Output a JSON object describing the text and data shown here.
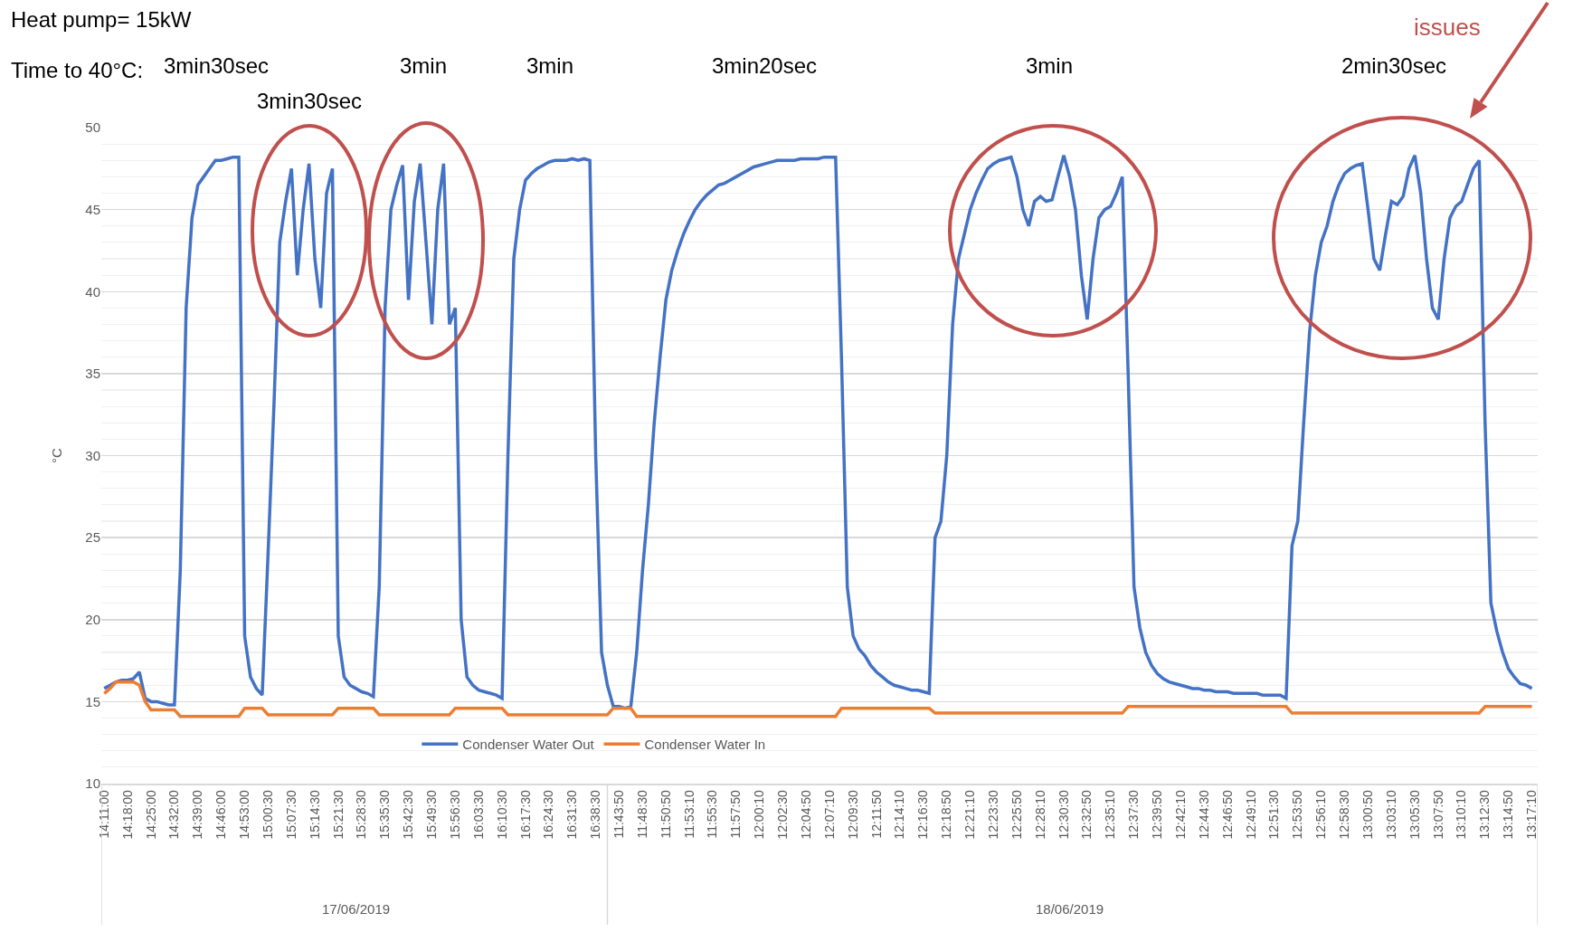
{
  "chart_data": {
    "type": "line",
    "categories": [
      "14:11:00",
      null,
      null,
      null,
      "14:18:00",
      null,
      null,
      null,
      "14:25:00",
      null,
      null,
      null,
      "14:32:00",
      null,
      null,
      null,
      "14:39:00",
      null,
      null,
      null,
      "14:46:00",
      null,
      null,
      null,
      "14:53:00",
      null,
      null,
      null,
      "15:00:30",
      null,
      null,
      null,
      "15:07:30",
      null,
      null,
      null,
      "15:14:30",
      null,
      null,
      null,
      "15:21:30",
      null,
      null,
      null,
      "15:28:30",
      null,
      null,
      null,
      "15:35:30",
      null,
      null,
      null,
      "15:42:30",
      null,
      null,
      null,
      "15:49:30",
      null,
      null,
      null,
      "15:56:30",
      null,
      null,
      null,
      "16:03:30",
      null,
      null,
      null,
      "16:10:30",
      null,
      null,
      null,
      "16:17:30",
      null,
      null,
      null,
      "16:24:30",
      null,
      null,
      null,
      "16:31:30",
      null,
      null,
      null,
      "16:38:30",
      null,
      null,
      null,
      "11:43:50",
      null,
      null,
      null,
      "11:48:30",
      null,
      null,
      null,
      "11:50:50",
      null,
      null,
      null,
      "11:53:10",
      null,
      null,
      null,
      "11:55:30",
      null,
      null,
      null,
      "11:57:50",
      null,
      null,
      null,
      "12:00:10",
      null,
      null,
      null,
      "12:02:30",
      null,
      null,
      null,
      "12:04:50",
      null,
      null,
      null,
      "12:07:10",
      null,
      null,
      null,
      "12:09:30",
      null,
      null,
      null,
      "12:11:50",
      null,
      null,
      null,
      "12:14:10",
      null,
      null,
      null,
      "12:16:30",
      null,
      null,
      null,
      "12:18:50",
      null,
      null,
      null,
      "12:21:10",
      null,
      null,
      null,
      "12:23:30",
      null,
      null,
      null,
      "12:25:50",
      null,
      null,
      null,
      "12:28:10",
      null,
      null,
      null,
      "12:30:30",
      null,
      null,
      null,
      "12:32:50",
      null,
      null,
      null,
      "12:35:10",
      null,
      null,
      null,
      "12:37:30",
      null,
      null,
      null,
      "12:39:50",
      null,
      null,
      null,
      "12:42:10",
      null,
      null,
      null,
      "12:44:30",
      null,
      null,
      null,
      "12:46:50",
      null,
      null,
      null,
      "12:49:10",
      null,
      null,
      null,
      "12:51:30",
      null,
      null,
      null,
      "12:53:50",
      null,
      null,
      null,
      "12:56:10",
      null,
      null,
      null,
      "12:58:30",
      null,
      null,
      null,
      "13:00:50",
      null,
      null,
      null,
      "13:03:10",
      null,
      null,
      null,
      "13:05:30",
      null,
      null,
      null,
      "13:07:50",
      null,
      null,
      null,
      "13:10:10",
      null,
      null,
      null,
      "13:12:30",
      null,
      null,
      null,
      "13:14:50",
      null,
      null,
      null,
      "13:17:10"
    ],
    "series": [
      {
        "name": "Condenser Water Out",
        "color": "#4472c4",
        "values": [
          15.8,
          16.0,
          16.2,
          16.3,
          16.3,
          16.4,
          16.8,
          15.2,
          15.0,
          15.0,
          14.9,
          14.8,
          14.8,
          23,
          39,
          44.5,
          46.5,
          47,
          47.5,
          48,
          48,
          48.1,
          48.2,
          48.2,
          19,
          16.5,
          15.8,
          15.4,
          24,
          33,
          43,
          45.5,
          47.5,
          41,
          45,
          47.8,
          42,
          39,
          46,
          47.5,
          19,
          16.5,
          16,
          15.8,
          15.6,
          15.5,
          15.3,
          22,
          39,
          45,
          46.5,
          47.7,
          39.5,
          45.5,
          47.8,
          43,
          38,
          45,
          47.8,
          38,
          39,
          20,
          16.5,
          16,
          15.7,
          15.6,
          15.5,
          15.4,
          15.2,
          30,
          42,
          45,
          46.8,
          47.2,
          47.5,
          47.7,
          47.9,
          48,
          48,
          48,
          48.1,
          48,
          48.1,
          48,
          30,
          18,
          16,
          14.7,
          14.7,
          14.6,
          14.7,
          18,
          23,
          27,
          32,
          36,
          39.5,
          41.3,
          42.5,
          43.5,
          44.3,
          45,
          45.5,
          45.9,
          46.2,
          46.5,
          46.6,
          46.8,
          47,
          47.2,
          47.4,
          47.6,
          47.7,
          47.8,
          47.9,
          48,
          48,
          48,
          48,
          48.1,
          48.1,
          48.1,
          48.1,
          48.2,
          48.2,
          48.2,
          36,
          22,
          19,
          18.2,
          17.8,
          17.2,
          16.8,
          16.5,
          16.2,
          16,
          15.9,
          15.8,
          15.7,
          15.7,
          15.6,
          15.5,
          25,
          26,
          30,
          38,
          42,
          43.5,
          45,
          46,
          46.8,
          47.5,
          47.8,
          48,
          48.1,
          48.2,
          47,
          45,
          44,
          45.5,
          45.8,
          45.5,
          45.6,
          47,
          48.3,
          47,
          45,
          41,
          38.3,
          42,
          44.5,
          45,
          45.2,
          46,
          47,
          35,
          22,
          19.5,
          18,
          17.2,
          16.7,
          16.4,
          16.2,
          16.1,
          16,
          15.9,
          15.8,
          15.8,
          15.7,
          15.7,
          15.6,
          15.6,
          15.6,
          15.5,
          15.5,
          15.5,
          15.5,
          15.5,
          15.4,
          15.4,
          15.4,
          15.4,
          15.2,
          24.5,
          26,
          32,
          37.5,
          41,
          43,
          44,
          45.5,
          46.5,
          47.2,
          47.5,
          47.7,
          47.8,
          45,
          42,
          41.3,
          43.5,
          45.5,
          45.3,
          45.8,
          47.5,
          48.3,
          46,
          42,
          39,
          38.3,
          42,
          44.5,
          45.2,
          45.5,
          46.5,
          47.5,
          48,
          32,
          21,
          19.3,
          18,
          17,
          16.5,
          16.1,
          16,
          15.8
        ]
      },
      {
        "name": "Condenser Water In",
        "color": "#ed7d31",
        "values": [
          15.5,
          15.8,
          16.2,
          16.2,
          16.2,
          16.2,
          16.0,
          15.0,
          14.5,
          14.5,
          14.5,
          14.5,
          14.5,
          14.1,
          14.1,
          14.1,
          14.1,
          14.1,
          14.1,
          14.1,
          14.1,
          14.1,
          14.1,
          14.1,
          14.6,
          14.6,
          14.6,
          14.6,
          14.2,
          14.2,
          14.2,
          14.2,
          14.2,
          14.2,
          14.2,
          14.2,
          14.2,
          14.2,
          14.2,
          14.2,
          14.6,
          14.6,
          14.6,
          14.6,
          14.6,
          14.6,
          14.6,
          14.2,
          14.2,
          14.2,
          14.2,
          14.2,
          14.2,
          14.2,
          14.2,
          14.2,
          14.2,
          14.2,
          14.2,
          14.2,
          14.6,
          14.6,
          14.6,
          14.6,
          14.6,
          14.6,
          14.6,
          14.6,
          14.6,
          14.2,
          14.2,
          14.2,
          14.2,
          14.2,
          14.2,
          14.2,
          14.2,
          14.2,
          14.2,
          14.2,
          14.2,
          14.2,
          14.2,
          14.2,
          14.2,
          14.2,
          14.2,
          14.6,
          14.6,
          14.6,
          14.6,
          14.1,
          14.1,
          14.1,
          14.1,
          14.1,
          14.1,
          14.1,
          14.1,
          14.1,
          14.1,
          14.1,
          14.1,
          14.1,
          14.1,
          14.1,
          14.1,
          14.1,
          14.1,
          14.1,
          14.1,
          14.1,
          14.1,
          14.1,
          14.1,
          14.1,
          14.1,
          14.1,
          14.1,
          14.1,
          14.1,
          14.1,
          14.1,
          14.1,
          14.1,
          14.1,
          14.6,
          14.6,
          14.6,
          14.6,
          14.6,
          14.6,
          14.6,
          14.6,
          14.6,
          14.6,
          14.6,
          14.6,
          14.6,
          14.6,
          14.6,
          14.6,
          14.3,
          14.3,
          14.3,
          14.3,
          14.3,
          14.3,
          14.3,
          14.3,
          14.3,
          14.3,
          14.3,
          14.3,
          14.3,
          14.3,
          14.3,
          14.3,
          14.3,
          14.3,
          14.3,
          14.3,
          14.3,
          14.3,
          14.3,
          14.3,
          14.3,
          14.3,
          14.3,
          14.3,
          14.3,
          14.3,
          14.3,
          14.3,
          14.3,
          14.7,
          14.7,
          14.7,
          14.7,
          14.7,
          14.7,
          14.7,
          14.7,
          14.7,
          14.7,
          14.7,
          14.7,
          14.7,
          14.7,
          14.7,
          14.7,
          14.7,
          14.7,
          14.7,
          14.7,
          14.7,
          14.7,
          14.7,
          14.7,
          14.7,
          14.7,
          14.7,
          14.7,
          14.3,
          14.3,
          14.3,
          14.3,
          14.3,
          14.3,
          14.3,
          14.3,
          14.3,
          14.3,
          14.3,
          14.3,
          14.3,
          14.3,
          14.3,
          14.3,
          14.3,
          14.3,
          14.3,
          14.3,
          14.3,
          14.3,
          14.3,
          14.3,
          14.3,
          14.3,
          14.3,
          14.3,
          14.3,
          14.3,
          14.3,
          14.3,
          14.3,
          14.7,
          14.7,
          14.7,
          14.7,
          14.7,
          14.7,
          14.7,
          14.7,
          14.7
        ]
      }
    ],
    "ylim": [
      10,
      50
    ],
    "yticks": [
      10,
      15,
      20,
      25,
      30,
      35,
      40,
      45,
      50
    ],
    "ylabel": "°C",
    "grid": "y",
    "legend": "bottom",
    "annotations": [
      "Heat pump= 15kW",
      "Time to 40°C:",
      "3min30sec",
      "3min30sec",
      "3min",
      "3min",
      "3min20sec",
      "3min",
      "2min30sec",
      "issues",
      "17/06/2019",
      "18/06/2019"
    ]
  }
}
